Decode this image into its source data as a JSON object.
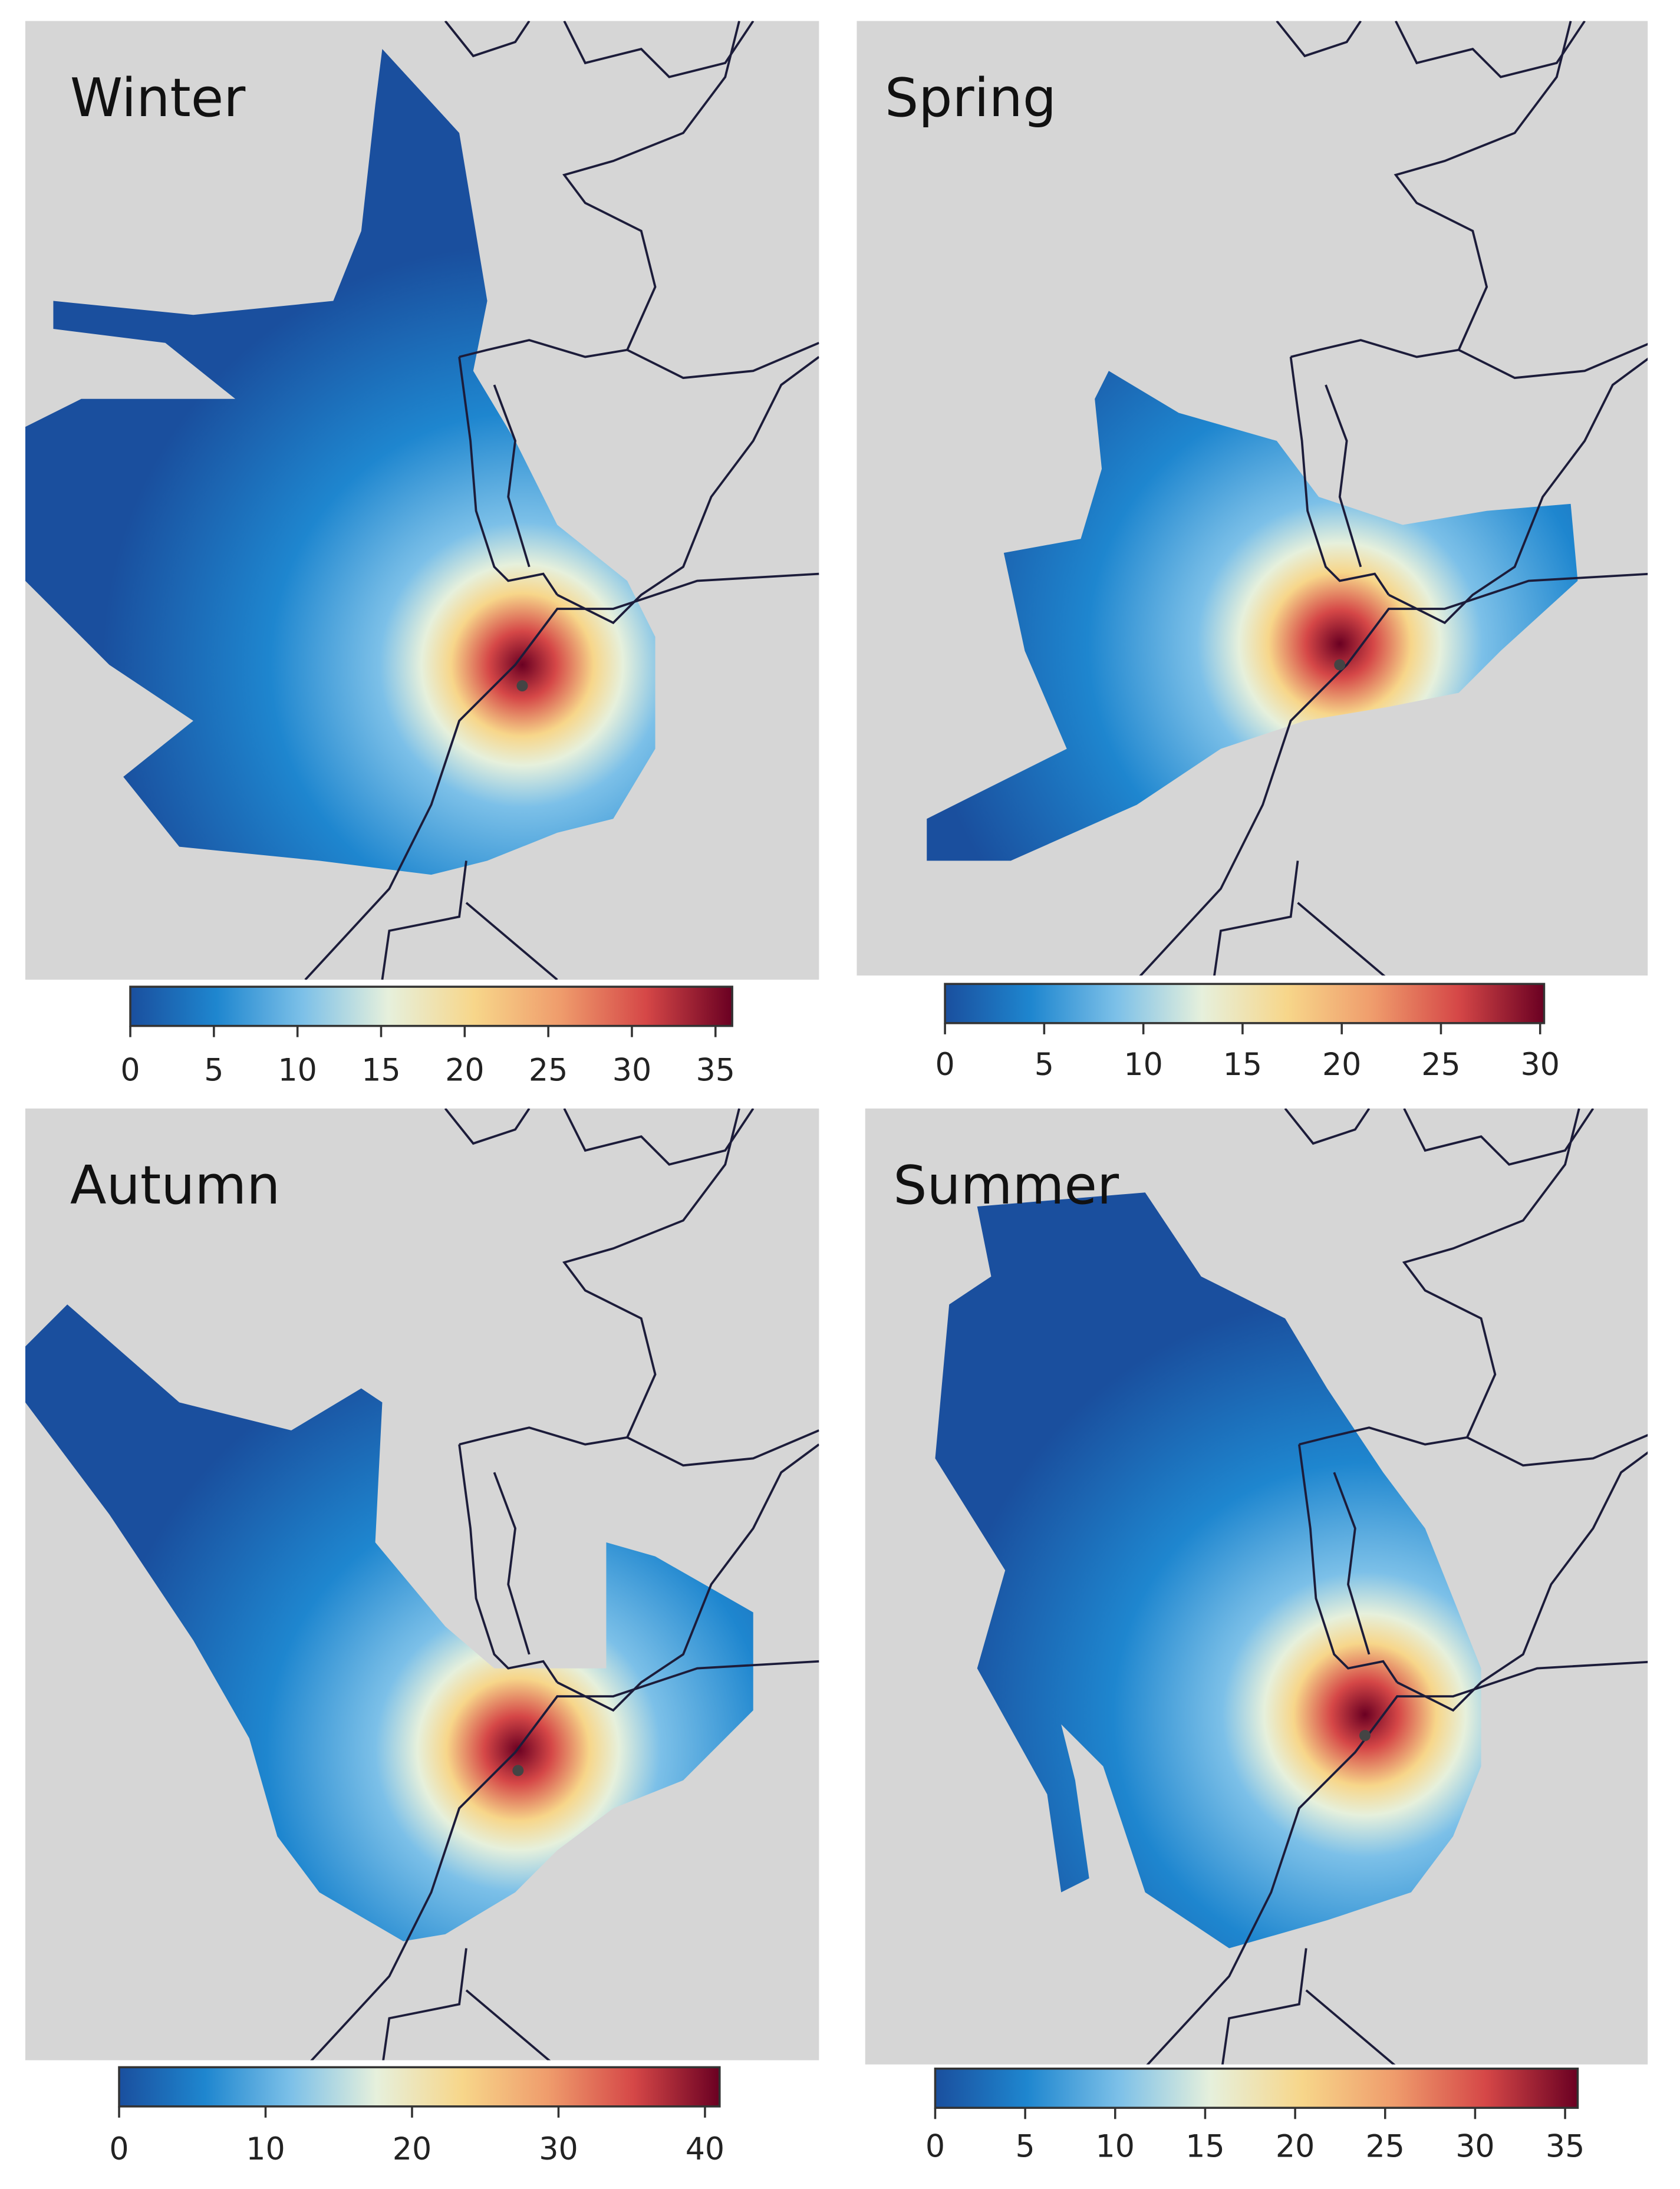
{
  "chart_data": [
    {
      "type": "map",
      "title": "Winter",
      "xlim": [
        0,
        36
      ],
      "xticks": [
        0,
        5,
        10,
        15,
        20,
        25,
        30,
        35
      ],
      "colormap": [
        "#1a4f9e",
        "#1e86cf",
        "#7cc0e8",
        "#e6f0dc",
        "#f7d68a",
        "#ef9c6c",
        "#d54747",
        "#6a0022"
      ]
    },
    {
      "type": "map",
      "title": "Spring",
      "xlim": [
        0,
        30.2
      ],
      "xticks": [
        0,
        5,
        10,
        15,
        20,
        25,
        30
      ],
      "colormap": [
        "#1a4f9e",
        "#1e86cf",
        "#7cc0e8",
        "#e6f0dc",
        "#f7d68a",
        "#ef9c6c",
        "#d54747",
        "#6a0022"
      ]
    },
    {
      "type": "map",
      "title": "Autumn",
      "xlim": [
        0,
        41
      ],
      "xticks": [
        0,
        10,
        20,
        30,
        40
      ],
      "colormap": [
        "#1a4f9e",
        "#1e86cf",
        "#7cc0e8",
        "#e6f0dc",
        "#f7d68a",
        "#ef9c6c",
        "#d54747",
        "#6a0022"
      ]
    },
    {
      "type": "map",
      "title": "Summer",
      "xlim": [
        0,
        35.7
      ],
      "xticks": [
        0,
        5,
        10,
        15,
        20,
        25,
        30,
        35
      ],
      "colormap": [
        "#1a4f9e",
        "#1e86cf",
        "#7cc0e8",
        "#e6f0dc",
        "#f7d68a",
        "#ef9c6c",
        "#d54747",
        "#6a0022"
      ]
    }
  ]
}
